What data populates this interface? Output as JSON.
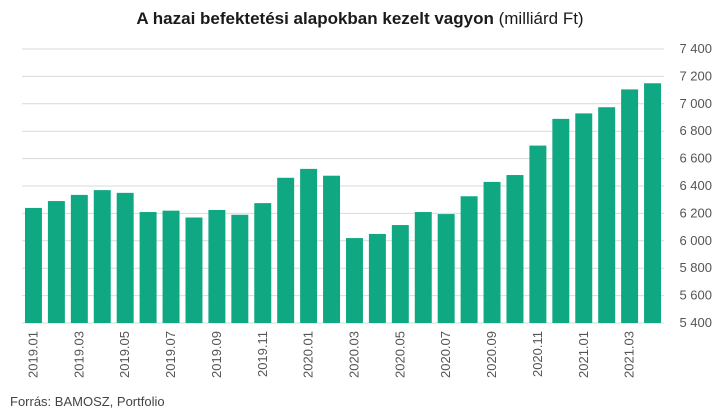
{
  "chart_data": {
    "type": "bar",
    "title": "A hazai befektetési alapokban kezelt vagyon",
    "title_unit": "(milliárd Ft)",
    "source": "Forrás: BAMOSZ, Portfolio",
    "bar_color": "#10a882",
    "grid_color": "#d9d9d9",
    "ylim": [
      5400,
      7400
    ],
    "y_ticks": [
      5400,
      5600,
      5800,
      6000,
      6200,
      6400,
      6600,
      6800,
      7000,
      7200,
      7400
    ],
    "y_tick_labels": [
      "5 400",
      "5 600",
      "5 800",
      "6 000",
      "6 200",
      "6 400",
      "6 600",
      "6 800",
      "7 000",
      "7 200",
      "7 400"
    ],
    "y_axis_position": "right",
    "categories": [
      "2019.01",
      "2019.02",
      "2019.03",
      "2019.04",
      "2019.05",
      "2019.06",
      "2019.07",
      "2019.08",
      "2019.09",
      "2019.10",
      "2019.11",
      "2019.12",
      "2020.01",
      "2020.02",
      "2020.03",
      "2020.04",
      "2020.05",
      "2020.06",
      "2020.07",
      "2020.08",
      "2020.09",
      "2020.10",
      "2020.11",
      "2020.12",
      "2021.01",
      "2021.02",
      "2021.03",
      "2021.04"
    ],
    "x_tick_labels": [
      "2019.01",
      "2019.03",
      "2019.05",
      "2019.07",
      "2019.09",
      "2019.11",
      "2020.01",
      "2020.03",
      "2020.05",
      "2020.07",
      "2020.09",
      "2020.11",
      "2021.01",
      "2021.03"
    ],
    "values": [
      6240,
      6290,
      6335,
      6370,
      6350,
      6210,
      6220,
      6170,
      6225,
      6190,
      6275,
      6460,
      6525,
      6475,
      6020,
      6050,
      6115,
      6210,
      6195,
      6325,
      6430,
      6480,
      6695,
      6890,
      6930,
      6975,
      7105,
      7150
    ]
  }
}
